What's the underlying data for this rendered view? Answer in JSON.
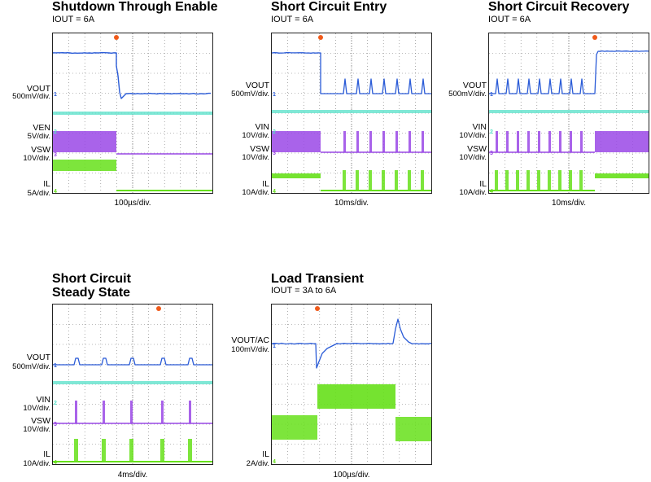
{
  "panels": [
    {
      "id": "shutdown",
      "title": "Shutdown Through Enable",
      "subtitle": "IOUT = 6A",
      "timebase": "100µs/div.",
      "labels": [
        {
          "name": "vout-label",
          "text": "VOUT",
          "scale": "500mV/div."
        },
        {
          "name": "ven-label",
          "text": "VEN",
          "scale": "5V/div."
        },
        {
          "name": "vsw-label",
          "text": "VSW",
          "scale": "10V/div."
        },
        {
          "name": "il-label",
          "text": "IL",
          "scale": "5A/div."
        }
      ]
    },
    {
      "id": "sc-entry",
      "title": "Short Circuit Entry",
      "subtitle": "IOUT = 6A",
      "timebase": "10ms/div.",
      "labels": [
        {
          "name": "vout-label",
          "text": "VOUT",
          "scale": "500mV/div."
        },
        {
          "name": "vin-label",
          "text": "VIN",
          "scale": "10V/div."
        },
        {
          "name": "vsw-label",
          "text": "VSW",
          "scale": "10V/div."
        },
        {
          "name": "il-label",
          "text": "IL",
          "scale": "10A/div."
        }
      ]
    },
    {
      "id": "sc-recovery",
      "title": "Short Circuit Recovery",
      "subtitle": "IOUT = 6A",
      "timebase": "10ms/div.",
      "labels": [
        {
          "name": "vout-label",
          "text": "VOUT",
          "scale": "500mV/div."
        },
        {
          "name": "vin-label",
          "text": "VIN",
          "scale": "10V/div."
        },
        {
          "name": "vsw-label",
          "text": "VSW",
          "scale": "10V/div."
        },
        {
          "name": "il-label",
          "text": "IL",
          "scale": "10A/div."
        }
      ]
    },
    {
      "id": "sc-steady",
      "title": "Short Circuit",
      "title2": "Steady State",
      "subtitle": "",
      "timebase": "4ms/div.",
      "labels": [
        {
          "name": "vout-label",
          "text": "VOUT",
          "scale": "500mV/div."
        },
        {
          "name": "vin-label",
          "text": "VIN",
          "scale": "10V/div."
        },
        {
          "name": "vsw-label",
          "text": "VSW",
          "scale": "10V/div."
        },
        {
          "name": "il-label",
          "text": "IL",
          "scale": "10A/div."
        }
      ]
    },
    {
      "id": "load-transient",
      "title": "Load Transient",
      "subtitle": "IOUT = 3A to 6A",
      "timebase": "100µs/div.",
      "labels": [
        {
          "name": "vout-ac-label",
          "text": "VOUT/AC",
          "scale": "100mV/div."
        },
        {
          "name": "il-label",
          "text": "IL",
          "scale": "2A/div."
        }
      ]
    }
  ],
  "colors": {
    "vout": "#2a5bd7",
    "ven": "#55e0c8",
    "vsw": "#9a48e6",
    "il": "#66e01a",
    "trigger": "#f05a1a",
    "grid": "#777777"
  }
}
